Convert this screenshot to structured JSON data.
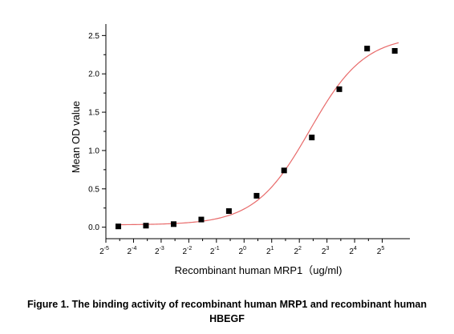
{
  "chart_data": {
    "type": "scatter",
    "title": "",
    "xlabel": "Recombinant human  MRP1（ug/ml)",
    "ylabel": "Mean OD value",
    "x_scale": "log2",
    "x_ticks": [
      {
        "base": "2",
        "exp": "-5",
        "value": 0.03125
      },
      {
        "base": "2",
        "exp": "-4",
        "value": 0.0625
      },
      {
        "base": "2",
        "exp": "-3",
        "value": 0.125
      },
      {
        "base": "2",
        "exp": "-2",
        "value": 0.25
      },
      {
        "base": "2",
        "exp": "-1",
        "value": 0.5
      },
      {
        "base": "2",
        "exp": "0",
        "value": 1
      },
      {
        "base": "2",
        "exp": "1",
        "value": 2
      },
      {
        "base": "2",
        "exp": "2",
        "value": 4
      },
      {
        "base": "2",
        "exp": "3",
        "value": 8
      },
      {
        "base": "2",
        "exp": "4",
        "value": 16
      },
      {
        "base": "2",
        "exp": "5",
        "value": 32
      }
    ],
    "y_ticks": [
      "0.0",
      "0.5",
      "1.0",
      "1.5",
      "2.0",
      "2.5"
    ],
    "xlim": [
      0.03125,
      64
    ],
    "ylim": [
      -0.15,
      2.65
    ],
    "series": [
      {
        "points": [
          {
            "x": 0.0427,
            "y": 0.01
          },
          {
            "x": 0.0854,
            "y": 0.02
          },
          {
            "x": 0.171,
            "y": 0.04
          },
          {
            "x": 0.342,
            "y": 0.1
          },
          {
            "x": 0.684,
            "y": 0.21
          },
          {
            "x": 1.37,
            "y": 0.41
          },
          {
            "x": 2.73,
            "y": 0.74
          },
          {
            "x": 5.47,
            "y": 1.17
          },
          {
            "x": 10.9,
            "y": 1.8
          },
          {
            "x": 21.9,
            "y": 2.33
          },
          {
            "x": 43.8,
            "y": 2.3
          }
        ]
      }
    ],
    "fit_curve": {
      "type": "4PL",
      "bottom": 0.03,
      "top": 2.5,
      "ec50": 5.2,
      "hill": 1.45
    },
    "colors": {
      "marker": "#000000",
      "fit": "#e86a6a",
      "axis": "#000000"
    },
    "grid": false,
    "legend": "none"
  },
  "caption": {
    "line1": "Figure 1. The binding activity of recombinant human MRP1 and recombinant human",
    "line2": "HBEGF"
  }
}
